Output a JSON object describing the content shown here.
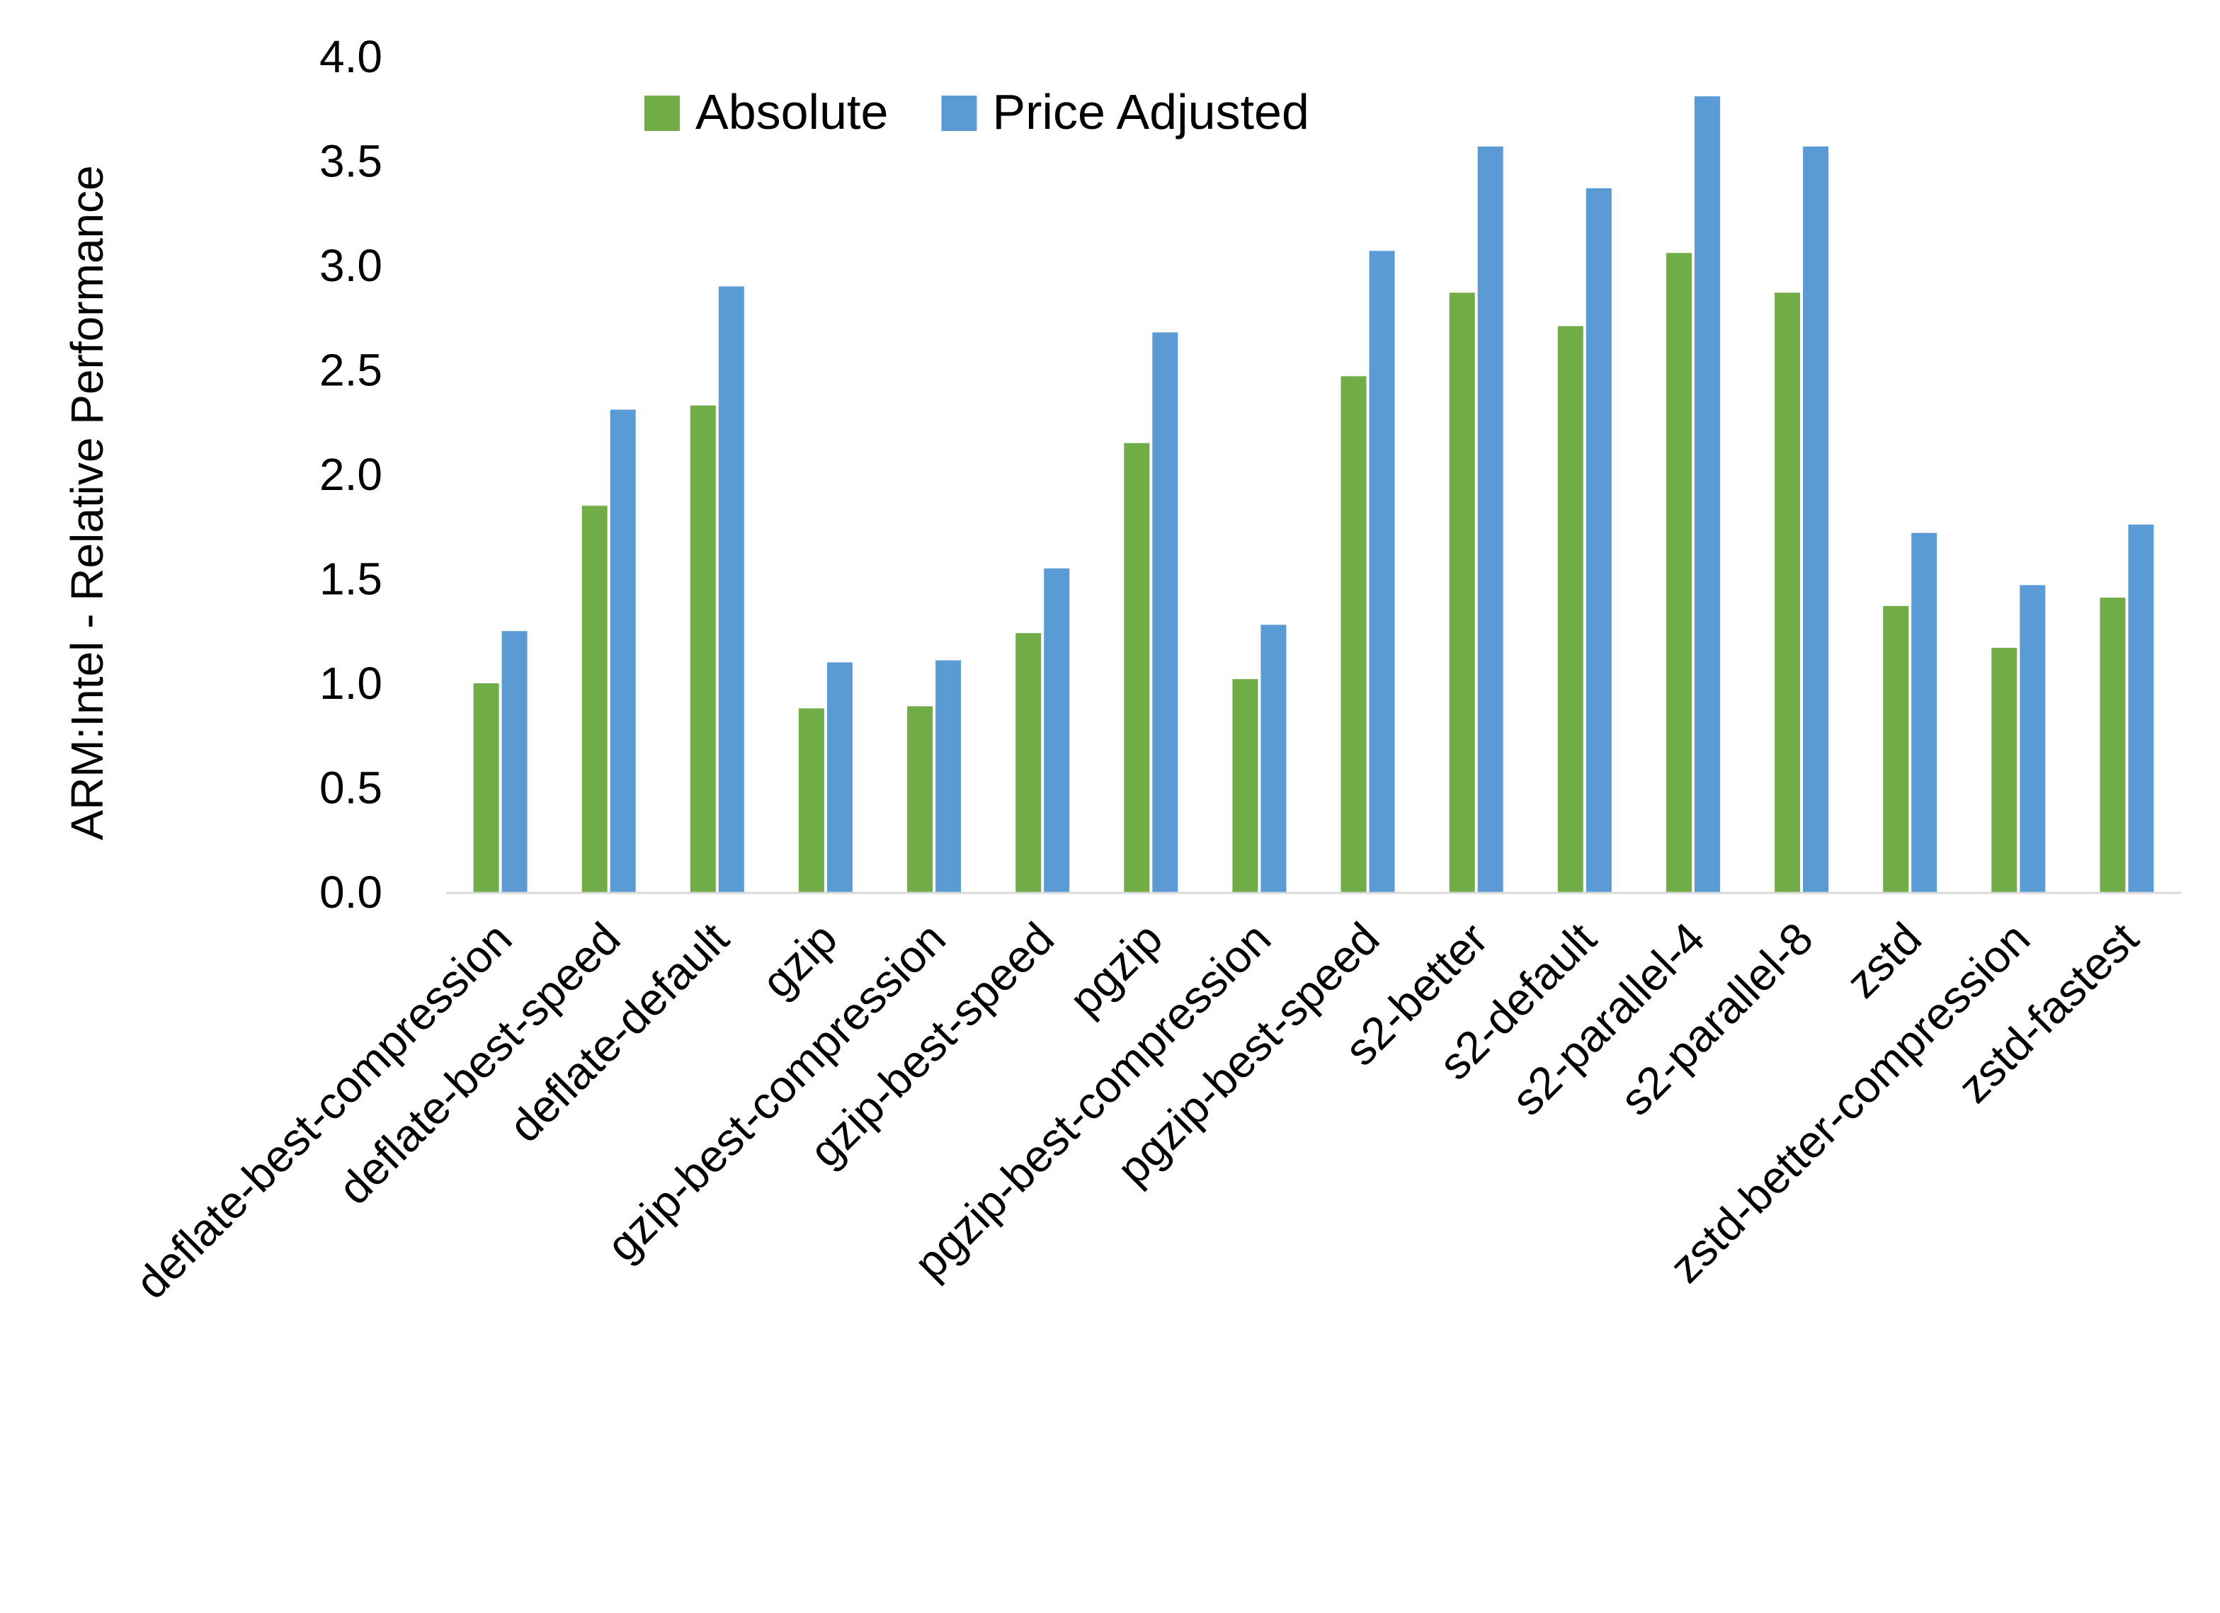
{
  "chart_data": {
    "type": "bar",
    "ylabel": "ARM:Intel - Relative Performance",
    "xlabel": "",
    "ylim": [
      0,
      4.0
    ],
    "yticks": [
      "0.0",
      "0.5",
      "1.0",
      "1.5",
      "2.0",
      "2.5",
      "3.0",
      "3.5",
      "4.0"
    ],
    "grid": false,
    "legend_position": "top",
    "categories": [
      "deflate-best-compression",
      "deflate-best-speed",
      "deflate-default",
      "gzip",
      "gzip-best-compression",
      "gzip-best-speed",
      "pgzip",
      "pgzip-best-compression",
      "pgzip-best-speed",
      "s2-better",
      "s2-default",
      "s2-parallel-4",
      "s2-parallel-8",
      "zstd",
      "zstd-better-compression",
      "zstd-fastest"
    ],
    "series": [
      {
        "name": "Absolute",
        "color": "#70AD47",
        "values": [
          1.0,
          1.85,
          2.33,
          0.88,
          0.89,
          1.24,
          2.15,
          1.02,
          2.47,
          2.87,
          2.71,
          3.06,
          2.87,
          1.37,
          1.17,
          1.41
        ]
      },
      {
        "name": "Price Adjusted",
        "color": "#5B9BD5",
        "values": [
          1.25,
          2.31,
          2.9,
          1.1,
          1.11,
          1.55,
          2.68,
          1.28,
          3.07,
          3.57,
          3.37,
          3.81,
          3.57,
          1.72,
          1.47,
          1.76
        ]
      }
    ]
  }
}
